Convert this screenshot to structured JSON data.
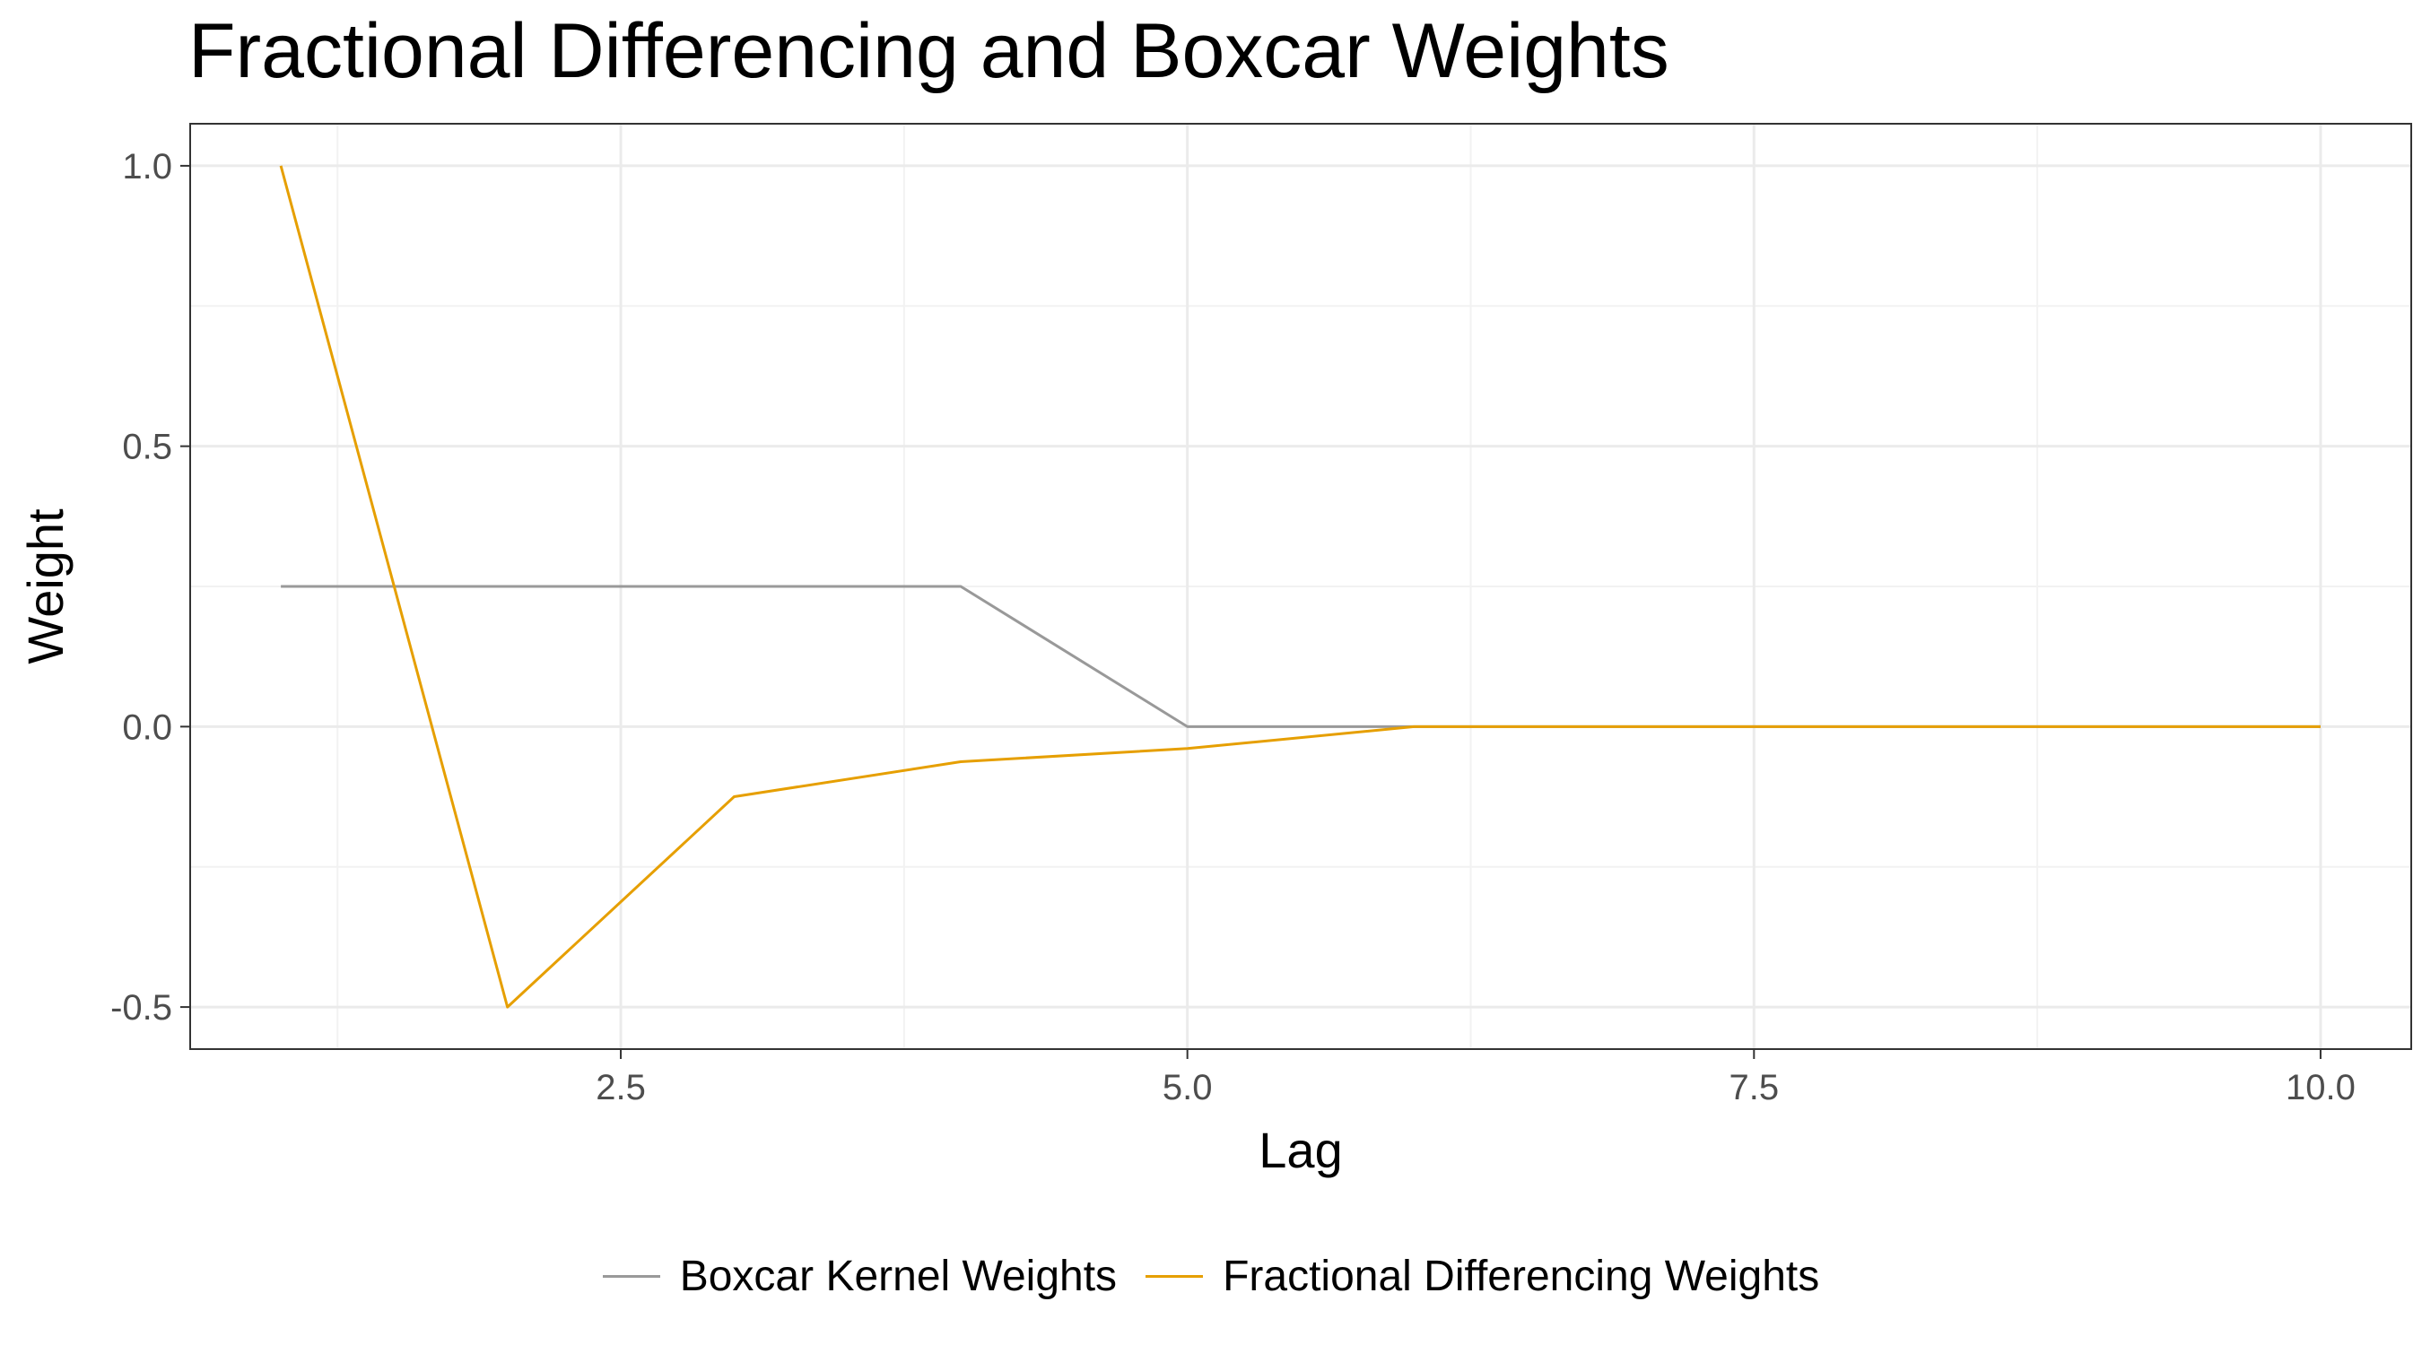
{
  "chart_data": {
    "type": "line",
    "title": "Fractional Differencing and Boxcar Weights",
    "xlabel": "Lag",
    "ylabel": "Weight",
    "xlim": [
      0.6,
      10.4
    ],
    "ylim": [
      -0.575,
      1.075
    ],
    "x_ticks": [
      2.5,
      5.0,
      7.5,
      10.0
    ],
    "x_tick_labels": [
      "2.5",
      "5.0",
      "7.5",
      "10.0"
    ],
    "x_minor_ticks": [
      1.25,
      3.75,
      6.25,
      8.75
    ],
    "y_ticks": [
      -0.5,
      0.0,
      0.5,
      1.0
    ],
    "y_tick_labels": [
      "-0.5",
      "0.0",
      "0.5",
      "1.0"
    ],
    "y_minor_ticks": [
      -0.25,
      0.25,
      0.75
    ],
    "grid": true,
    "legend_position": "bottom",
    "series": [
      {
        "name": "Boxcar Kernel Weights",
        "color": "#999999",
        "x": [
          1,
          2,
          3,
          4,
          5,
          6,
          7,
          8,
          9,
          10
        ],
        "values": [
          0.25,
          0.25,
          0.25,
          0.25,
          0,
          0,
          0,
          0,
          0,
          0
        ]
      },
      {
        "name": "Fractional Differencing Weights",
        "color": "#E69F00",
        "x": [
          1,
          2,
          3,
          4,
          5,
          6,
          7,
          8,
          9,
          10
        ],
        "values": [
          1.0,
          -0.5,
          -0.125,
          -0.0625,
          -0.039,
          0,
          0,
          0,
          0,
          0
        ]
      }
    ]
  }
}
